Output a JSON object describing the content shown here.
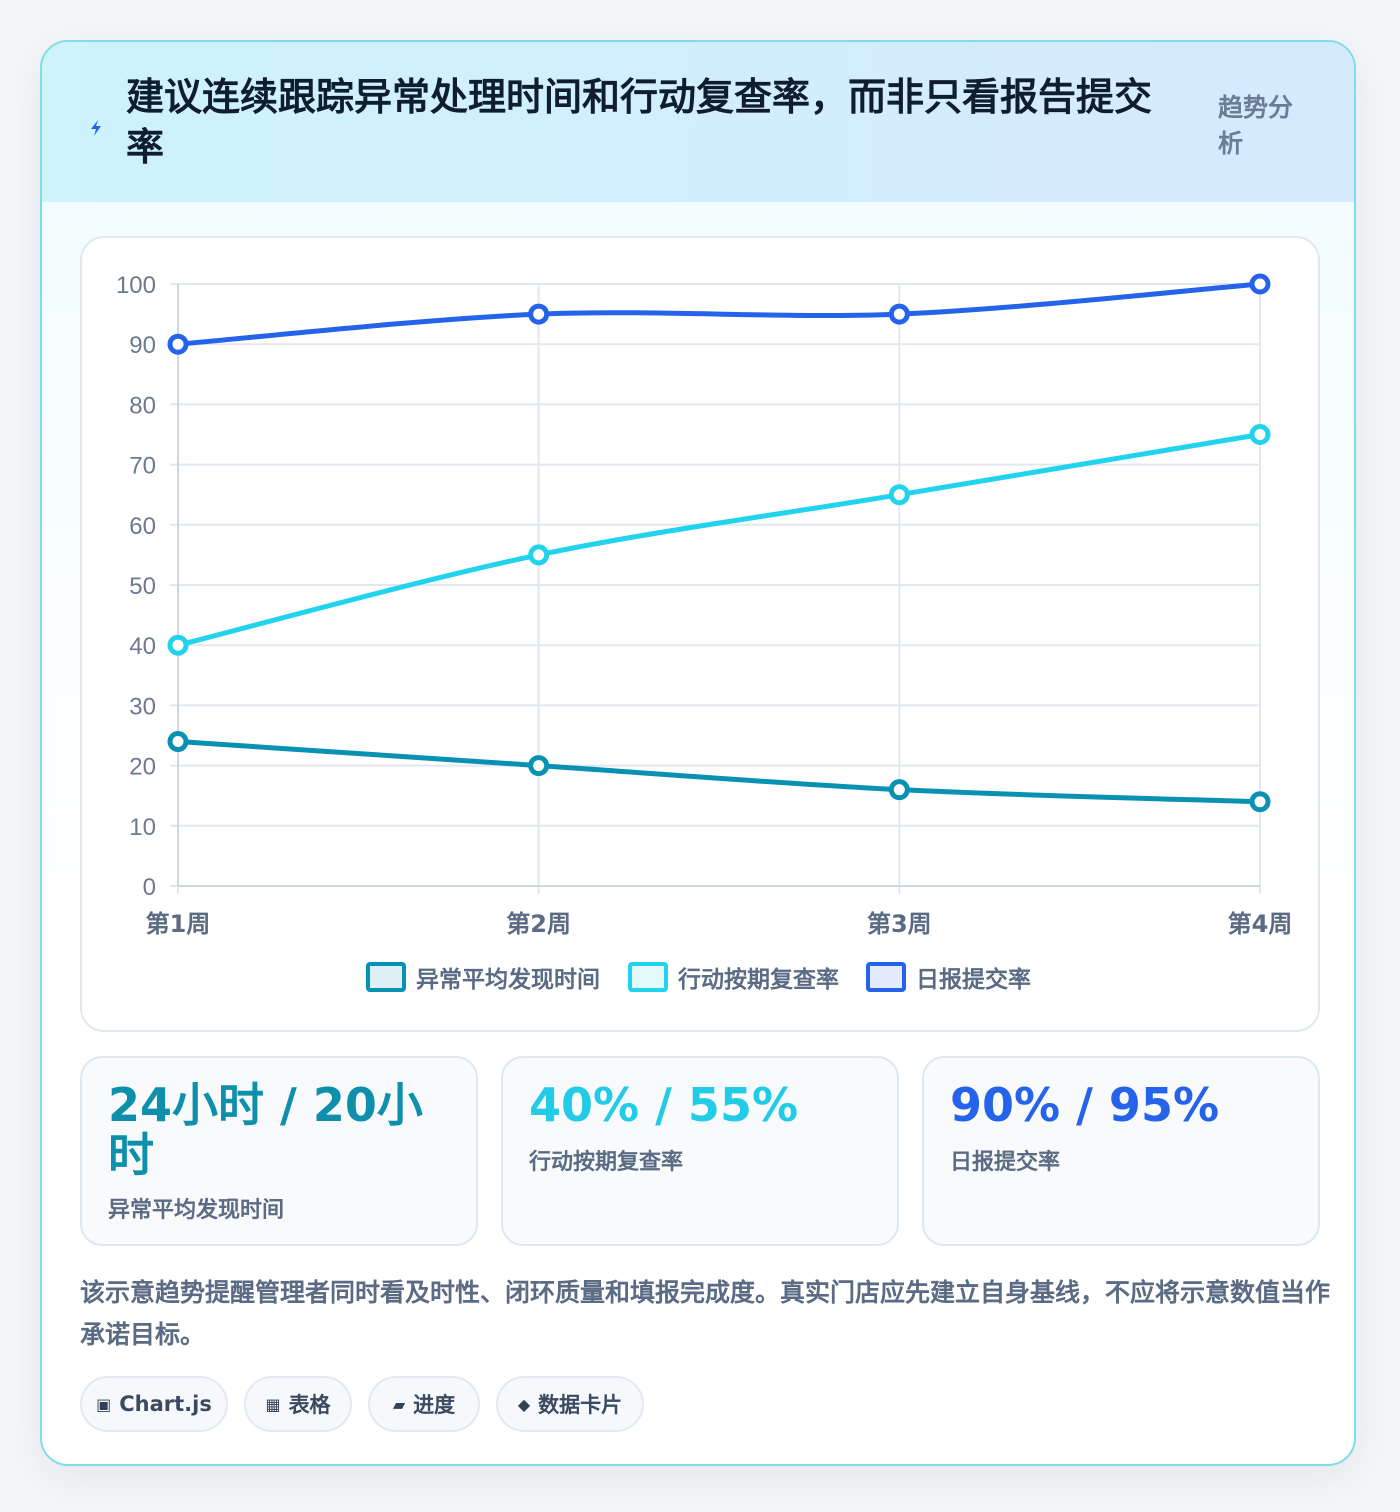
{
  "header": {
    "title": "建议连续跟踪异常处理时间和行动复查率，而非只看报告提交率",
    "tag": "趋势分析"
  },
  "chart_data": {
    "type": "line",
    "categories": [
      "第1周",
      "第2周",
      "第3周",
      "第4周"
    ],
    "ylim": [
      0,
      100
    ],
    "yticks": [
      0,
      10,
      20,
      30,
      40,
      50,
      60,
      70,
      80,
      90,
      100
    ],
    "grid": true,
    "legend_position": "bottom",
    "series": [
      {
        "name": "异常平均发现时间",
        "values": [
          24,
          20,
          16,
          14
        ],
        "color": "#0891b2"
      },
      {
        "name": "行动按期复查率",
        "values": [
          40,
          55,
          65,
          75
        ],
        "color": "#22d3ee"
      },
      {
        "name": "日报提交率",
        "values": [
          90,
          95,
          95,
          100
        ],
        "color": "#2563eb"
      }
    ]
  },
  "stats": [
    {
      "value": "24小时 / 20小时",
      "label": "异常平均发现时间",
      "color": "#0e8fab"
    },
    {
      "value": "40% / 55%",
      "label": "行动按期复查率",
      "color": "#22cce6"
    },
    {
      "value": "90% / 95%",
      "label": "日报提交率",
      "color": "#2563eb"
    }
  ],
  "note": "该示意趋势提醒管理者同时看及时性、闭环质量和填报完成度。真实门店应先建立自身基线，不应将示意数值当作承诺目标。",
  "chips": [
    {
      "icon": "▣",
      "label": "Chart.js"
    },
    {
      "icon": "▦",
      "label": "表格"
    },
    {
      "icon": "▰",
      "label": "进度"
    },
    {
      "icon": "◆",
      "label": "数据卡片"
    }
  ]
}
